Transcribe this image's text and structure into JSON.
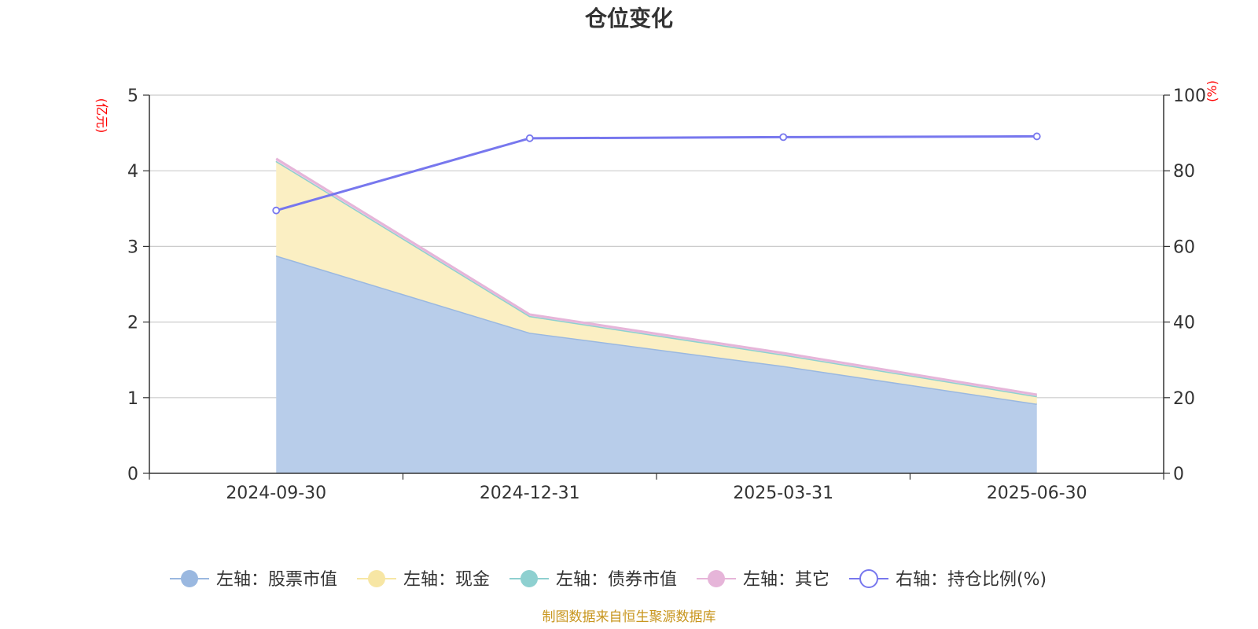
{
  "chart_data": {
    "type": "area",
    "title": "仓位变化",
    "categories": [
      "2024-09-30",
      "2024-12-31",
      "2025-03-31",
      "2025-06-30"
    ],
    "left_axis": {
      "unit_label": "(亿元)",
      "range": [
        0,
        5
      ],
      "ticks": [
        "0",
        "1",
        "2",
        "3",
        "4",
        "5"
      ]
    },
    "right_axis": {
      "unit_label": "(%)",
      "range": [
        0,
        100
      ],
      "ticks": [
        "0",
        "20",
        "40",
        "60",
        "80",
        "100"
      ]
    },
    "stacked": true,
    "grid": true,
    "legend_position": "bottom",
    "series": [
      {
        "name": "左轴：股票市值",
        "axis": "left",
        "values": [
          2.88,
          1.86,
          1.42,
          0.92
        ],
        "color": "#9ab8e0",
        "fill": "#b8cdea"
      },
      {
        "name": "左轴：现金",
        "axis": "left",
        "values": [
          1.25,
          0.22,
          0.15,
          0.1
        ],
        "color": "#f7e6a4",
        "fill": "#fbefc3"
      },
      {
        "name": "左轴：债券市值",
        "axis": "left",
        "values": [
          0,
          0,
          0,
          0
        ],
        "color": "#8ed0d0",
        "fill": "#b6e2e2"
      },
      {
        "name": "左轴：其它",
        "axis": "left",
        "values": [
          0.03,
          0.02,
          0.02,
          0.02
        ],
        "color": "#e6b5d9",
        "fill": "#efd0e6"
      },
      {
        "name": "右轴：持仓比例(%)",
        "axis": "right",
        "values": [
          69.5,
          88.6,
          88.9,
          89.1
        ],
        "color": "#7777ee",
        "type": "line"
      }
    ]
  },
  "source_text": "制图数据来自恒生聚源数据库"
}
